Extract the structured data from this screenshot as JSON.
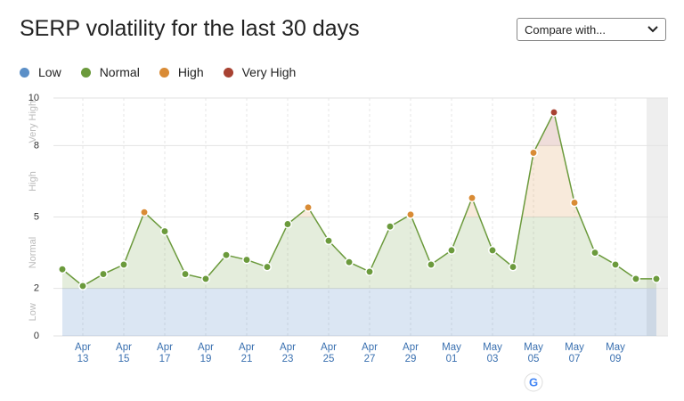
{
  "chart_data": {
    "type": "line",
    "title": "SERP volatility for the last 30 days",
    "compare_label": "Compare with...",
    "categories": [
      null,
      "Apr 13",
      null,
      "Apr 15",
      null,
      "Apr 17",
      null,
      "Apr 19",
      null,
      "Apr 21",
      null,
      "Apr 23",
      null,
      "Apr 25",
      null,
      "Apr 27",
      null,
      "Apr 29",
      null,
      "May 01",
      null,
      "May 03",
      null,
      "May 05",
      null,
      "May 07",
      null,
      "May 09",
      null,
      null
    ],
    "values": [
      2.8,
      2.1,
      2.6,
      3.0,
      5.2,
      4.4,
      2.6,
      2.4,
      3.4,
      3.2,
      2.9,
      4.7,
      5.4,
      4.0,
      3.1,
      2.7,
      4.6,
      5.1,
      3.0,
      3.6,
      5.8,
      3.6,
      2.9,
      7.7,
      9.4,
      5.6,
      3.5,
      3.0,
      2.4,
      2.4
    ],
    "line_color": "#6b9a3c",
    "bands": [
      {
        "name": "Low",
        "from": 0,
        "to": 2,
        "color": "#5b8fc7"
      },
      {
        "name": "Normal",
        "from": 2,
        "to": 5,
        "color": "#6b9a3c"
      },
      {
        "name": "High",
        "from": 5,
        "to": 8,
        "color": "#d98b35"
      },
      {
        "name": "Very High",
        "from": 8,
        "to": 10,
        "color": "#a84232"
      }
    ],
    "ylim": [
      0,
      10
    ],
    "yticks": [
      0,
      2,
      5,
      8,
      10
    ],
    "grid": true
  }
}
